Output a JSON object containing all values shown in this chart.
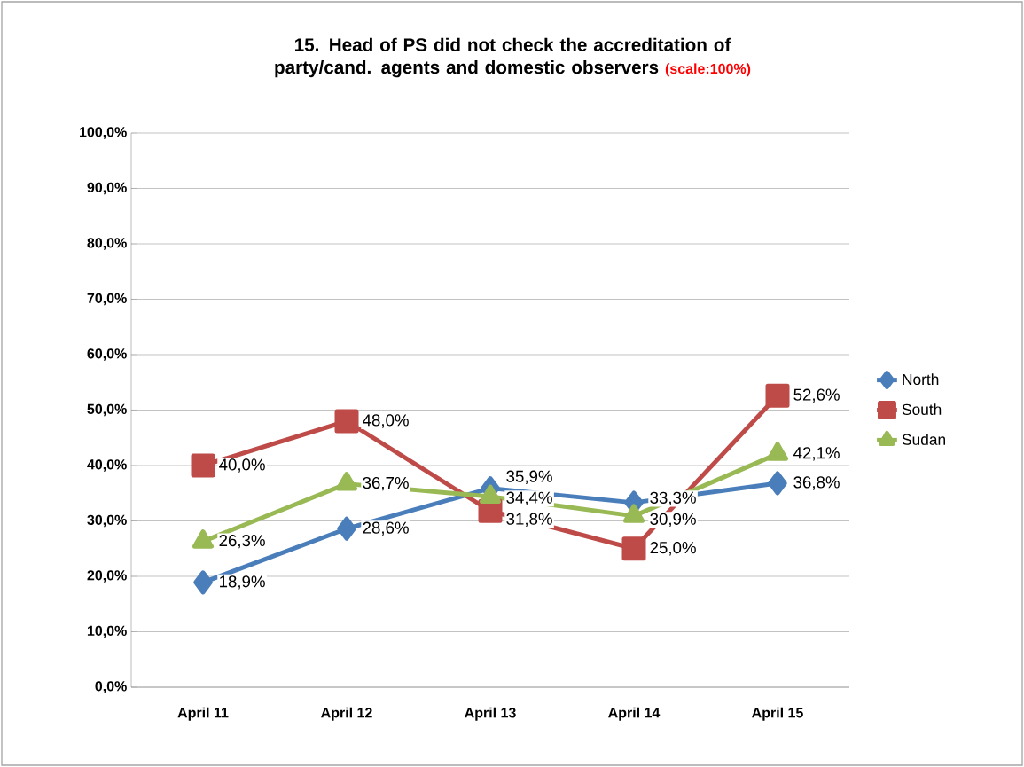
{
  "chart_data": {
    "type": "line",
    "title": "15. Head of PS did not check the accreditation of party/cand. agents and domestic observers",
    "subtitle": "(scale:100%)",
    "categories": [
      "April 11",
      "April 12",
      "April 13",
      "April 14",
      "April 15"
    ],
    "series": [
      {
        "name": "North",
        "color": "#4a7ebb",
        "marker": "diamond",
        "values": [
          18.9,
          28.6,
          35.9,
          33.3,
          36.8
        ],
        "value_labels": [
          "18,9%",
          "28,6%",
          "35,9%",
          "33,3%",
          "36,8%"
        ]
      },
      {
        "name": "South",
        "color": "#be4b48",
        "marker": "square",
        "values": [
          40.0,
          48.0,
          31.8,
          25.0,
          52.6
        ],
        "value_labels": [
          "40,0%",
          "48,0%",
          "31,8%",
          "25,0%",
          "52,6%"
        ]
      },
      {
        "name": "Sudan",
        "color": "#98b954",
        "marker": "triangle",
        "values": [
          26.3,
          36.7,
          34.4,
          30.9,
          42.1
        ],
        "value_labels": [
          "26,3%",
          "36,7%",
          "34,4%",
          "30,9%",
          "42,1%"
        ]
      }
    ],
    "ylim": [
      0,
      100
    ],
    "yticks": [
      {
        "value": 0,
        "label": "0,0%"
      },
      {
        "value": 10,
        "label": "10,0%"
      },
      {
        "value": 20,
        "label": "20,0%"
      },
      {
        "value": 30,
        "label": "30,0%"
      },
      {
        "value": 40,
        "label": "40,0%"
      },
      {
        "value": 50,
        "label": "50,0%"
      },
      {
        "value": 60,
        "label": "60,0%"
      },
      {
        "value": 70,
        "label": "70,0%"
      },
      {
        "value": 80,
        "label": "80,0%"
      },
      {
        "value": 90,
        "label": "90,0%"
      },
      {
        "value": 100,
        "label": "100,0%"
      }
    ],
    "grid": "y",
    "legend": "right",
    "line_style": "solid"
  }
}
